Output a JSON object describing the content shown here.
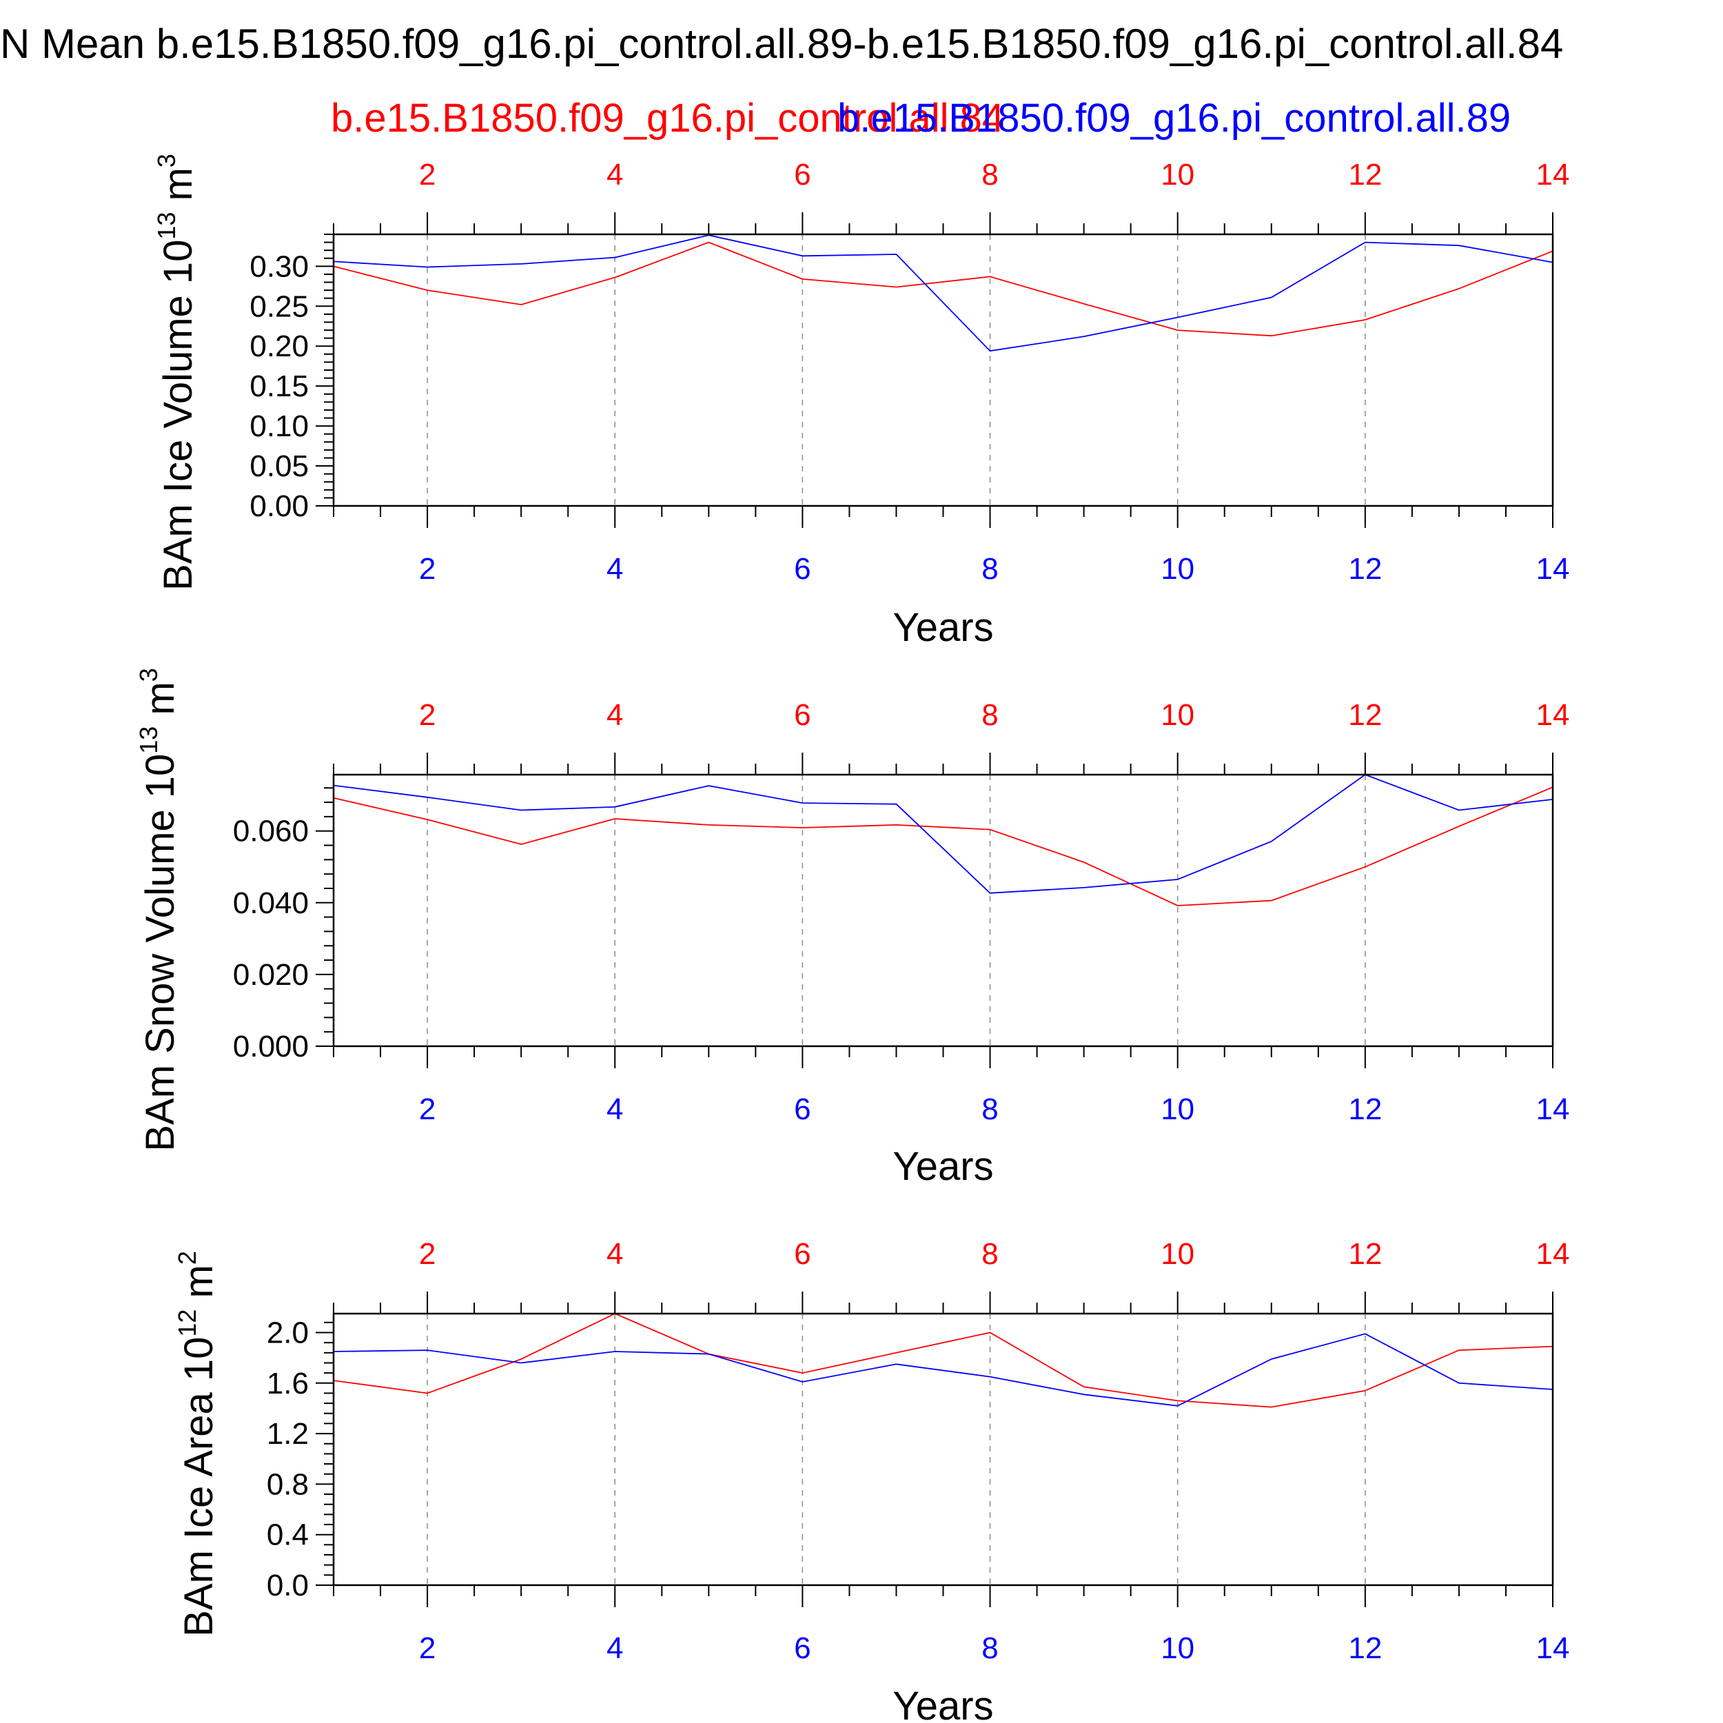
{
  "title": "N Mean b.e15.B1850.f09_g16.pi_control.all.89-b.e15.B1850.f09_g16.pi_control.all.84",
  "legend": {
    "red_label": "b.e15.B1850.f09_g16.pi_control.all.84",
    "blue_label": "b.e15.B1850.f09_g16.pi_control.all.89"
  },
  "colors": {
    "red": "#ff0000",
    "blue": "#0000ff",
    "frame": "#000000",
    "grid": "#8c8c8c"
  },
  "chart_data": [
    {
      "type": "line",
      "title": "",
      "xlabel": "Years",
      "ylabel": "BAm Ice Volume 10",
      "ylabel_sup": "13",
      "ylabel_unit": "m",
      "ylabel_unit_sup": "3",
      "xlim": [
        1,
        14
      ],
      "ylim": [
        0,
        0.34
      ],
      "yticks": [
        "0.00",
        "0.05",
        "0.10",
        "0.15",
        "0.20",
        "0.25",
        "0.30"
      ],
      "xticks": [
        "2",
        "4",
        "6",
        "8",
        "10",
        "12",
        "14"
      ],
      "x": [
        1,
        2,
        3,
        4,
        5,
        6,
        7,
        8,
        9,
        10,
        11,
        12,
        13,
        14
      ],
      "series": [
        {
          "name": "b.e15.B1850.f09_g16.pi_control.all.84",
          "color": "#ff0000",
          "values": [
            0.3,
            0.27,
            0.252,
            0.286,
            0.33,
            0.284,
            0.274,
            0.287,
            0.253,
            0.22,
            0.213,
            0.233,
            0.272,
            0.319
          ]
        },
        {
          "name": "b.e15.B1850.f09_g16.pi_control.all.89",
          "color": "#0000ff",
          "values": [
            0.306,
            0.299,
            0.303,
            0.311,
            0.339,
            0.313,
            0.315,
            0.194,
            0.212,
            0.236,
            0.261,
            0.33,
            0.326,
            0.305
          ]
        }
      ]
    },
    {
      "type": "line",
      "title": "",
      "xlabel": "Years",
      "ylabel": "BAm Snow Volume 10",
      "ylabel_sup": "13",
      "ylabel_unit": "m",
      "ylabel_unit_sup": "3",
      "xlim": [
        1,
        14
      ],
      "ylim": [
        0,
        0.0757
      ],
      "yticks": [
        "0.000",
        "0.020",
        "0.040",
        "0.060"
      ],
      "xticks": [
        "2",
        "4",
        "6",
        "8",
        "10",
        "12",
        "14"
      ],
      "x": [
        1,
        2,
        3,
        4,
        5,
        6,
        7,
        8,
        9,
        10,
        11,
        12,
        13,
        14
      ],
      "series": [
        {
          "name": "b.e15.B1850.f09_g16.pi_control.all.84",
          "color": "#ff0000",
          "values": [
            0.0692,
            0.0632,
            0.0563,
            0.0634,
            0.0617,
            0.0609,
            0.0617,
            0.0604,
            0.0513,
            0.0392,
            0.0406,
            0.05,
            0.0613,
            0.0722
          ]
        },
        {
          "name": "b.e15.B1850.f09_g16.pi_control.all.89",
          "color": "#0000ff",
          "values": [
            0.0727,
            0.0694,
            0.0658,
            0.0667,
            0.0726,
            0.0678,
            0.0675,
            0.0427,
            0.0442,
            0.0465,
            0.0571,
            0.0757,
            0.0658,
            0.0688
          ]
        }
      ]
    },
    {
      "type": "line",
      "title": "",
      "xlabel": "Years",
      "ylabel": "BAm Ice Area 10",
      "ylabel_sup": "12",
      "ylabel_unit": "m",
      "ylabel_unit_sup": "2",
      "xlim": [
        1,
        14
      ],
      "ylim": [
        0,
        2.15
      ],
      "yticks": [
        "0.0",
        "0.4",
        "0.8",
        "1.2",
        "1.6",
        "2.0"
      ],
      "xticks": [
        "2",
        "4",
        "6",
        "8",
        "10",
        "12",
        "14"
      ],
      "x": [
        1,
        2,
        3,
        4,
        5,
        6,
        7,
        8,
        9,
        10,
        11,
        12,
        13,
        14
      ],
      "series": [
        {
          "name": "b.e15.B1850.f09_g16.pi_control.all.84",
          "color": "#ff0000",
          "values": [
            1.62,
            1.52,
            1.79,
            2.15,
            1.83,
            1.68,
            1.84,
            2.0,
            1.57,
            1.46,
            1.41,
            1.54,
            1.86,
            1.89
          ]
        },
        {
          "name": "b.e15.B1850.f09_g16.pi_control.all.89",
          "color": "#0000ff",
          "values": [
            1.85,
            1.86,
            1.76,
            1.85,
            1.83,
            1.61,
            1.75,
            1.65,
            1.51,
            1.42,
            1.79,
            1.99,
            1.6,
            1.55
          ]
        }
      ]
    }
  ]
}
